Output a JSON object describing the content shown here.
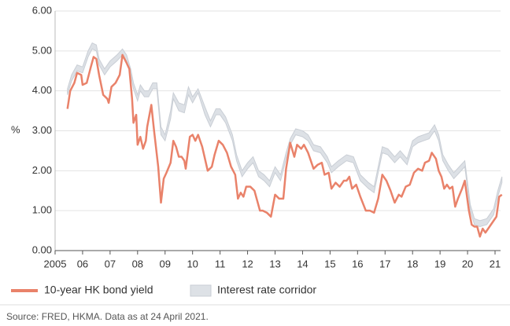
{
  "chart_data": {
    "type": "line",
    "y_label": "%",
    "source": "Source: FRED, HKMA. Data as at 24 April 2021.",
    "xlim": [
      2005,
      2021.2
    ],
    "ylim": [
      0,
      6
    ],
    "grid": true,
    "xticks": [
      2005,
      {
        "value": 2006,
        "label": "06"
      },
      {
        "value": 2007,
        "label": "07"
      },
      {
        "value": 2008,
        "label": "08"
      },
      {
        "value": 2009,
        "label": "09"
      },
      {
        "value": 2010,
        "label": "10"
      },
      {
        "value": 2011,
        "label": "11"
      },
      {
        "value": 2012,
        "label": "12"
      },
      {
        "value": 2013,
        "label": "13"
      },
      {
        "value": 2014,
        "label": "14"
      },
      {
        "value": 2015,
        "label": "15"
      },
      {
        "value": 2016,
        "label": "16"
      },
      {
        "value": 2017,
        "label": "17"
      },
      {
        "value": 2018,
        "label": "18"
      },
      {
        "value": 2019,
        "label": "19"
      },
      {
        "value": 2020,
        "label": "20"
      },
      {
        "value": 2021,
        "label": "21"
      }
    ],
    "yticks": [
      {
        "value": 0,
        "label": "0.00"
      },
      {
        "value": 1,
        "label": "1.00"
      },
      {
        "value": 2,
        "label": "2.00"
      },
      {
        "value": 3,
        "label": "3.00"
      },
      {
        "value": 4,
        "label": "4.00"
      },
      {
        "value": 5,
        "label": "5.00"
      },
      {
        "value": 6,
        "label": "6.00"
      }
    ],
    "series": [
      {
        "name": "10-year HK bond yield",
        "color": "#e9826a",
        "x": [
          2005.45,
          2005.55,
          2005.7,
          2005.8,
          2005.95,
          2006.0,
          2006.15,
          2006.3,
          2006.4,
          2006.5,
          2006.6,
          2006.75,
          2006.9,
          2006.95,
          2007.05,
          2007.2,
          2007.35,
          2007.45,
          2007.6,
          2007.7,
          2007.8,
          2007.85,
          2007.95,
          2008.0,
          2008.1,
          2008.2,
          2008.3,
          2008.35,
          2008.5,
          2008.6,
          2008.75,
          2008.85,
          2008.95,
          2009.05,
          2009.2,
          2009.3,
          2009.4,
          2009.5,
          2009.6,
          2009.7,
          2009.75,
          2009.9,
          2010.0,
          2010.1,
          2010.2,
          2010.35,
          2010.45,
          2010.55,
          2010.7,
          2010.8,
          2010.95,
          2011.1,
          2011.25,
          2011.4,
          2011.55,
          2011.65,
          2011.75,
          2011.85,
          2011.95,
          2012.1,
          2012.25,
          2012.35,
          2012.45,
          2012.55,
          2012.7,
          2012.85,
          2013.0,
          2013.15,
          2013.3,
          2013.4,
          2013.55,
          2013.7,
          2013.8,
          2013.95,
          2014.05,
          2014.2,
          2014.4,
          2014.55,
          2014.7,
          2014.8,
          2014.95,
          2015.05,
          2015.2,
          2015.35,
          2015.5,
          2015.6,
          2015.7,
          2015.8,
          2015.95,
          2016.1,
          2016.3,
          2016.45,
          2016.6,
          2016.75,
          2016.9,
          2017.05,
          2017.2,
          2017.35,
          2017.5,
          2017.6,
          2017.75,
          2017.9,
          2018.05,
          2018.2,
          2018.35,
          2018.45,
          2018.6,
          2018.7,
          2018.85,
          2018.95,
          2019.05,
          2019.15,
          2019.25,
          2019.35,
          2019.45,
          2019.55,
          2019.65,
          2019.8,
          2019.9,
          2019.95,
          2020.05,
          2020.15,
          2020.25,
          2020.35,
          2020.45,
          2020.55,
          2020.65,
          2020.8,
          2020.95,
          2021.05,
          2021.15,
          2021.25
        ],
        "values": [
          3.55,
          4.0,
          4.2,
          4.45,
          4.4,
          4.15,
          4.2,
          4.6,
          4.85,
          4.8,
          4.4,
          3.9,
          3.8,
          3.7,
          4.1,
          4.2,
          4.4,
          4.9,
          4.7,
          4.55,
          3.8,
          3.2,
          3.4,
          2.65,
          2.85,
          2.55,
          2.75,
          3.1,
          3.65,
          3.0,
          2.1,
          1.2,
          1.8,
          1.95,
          2.2,
          2.75,
          2.6,
          2.35,
          2.35,
          2.25,
          2.05,
          2.85,
          2.9,
          2.75,
          2.9,
          2.6,
          2.3,
          2.0,
          2.1,
          2.4,
          2.75,
          2.65,
          2.45,
          2.1,
          1.9,
          1.3,
          1.45,
          1.35,
          1.6,
          1.6,
          1.5,
          1.25,
          1.0,
          1.0,
          0.95,
          0.85,
          1.4,
          1.3,
          1.3,
          2.05,
          2.7,
          2.35,
          2.65,
          2.55,
          2.65,
          2.45,
          2.05,
          2.15,
          2.2,
          1.9,
          1.95,
          1.55,
          1.7,
          1.6,
          1.75,
          1.75,
          1.85,
          1.55,
          1.65,
          1.35,
          1.0,
          1.0,
          0.95,
          1.3,
          1.9,
          1.75,
          1.5,
          1.2,
          1.4,
          1.35,
          1.6,
          1.65,
          1.95,
          2.05,
          2.0,
          2.2,
          2.25,
          2.45,
          2.3,
          2.0,
          1.85,
          1.55,
          1.65,
          1.55,
          1.6,
          1.1,
          1.3,
          1.55,
          1.75,
          1.5,
          1.0,
          0.65,
          0.6,
          0.6,
          0.35,
          0.55,
          0.45,
          0.6,
          0.75,
          0.85,
          1.35,
          1.4
        ]
      },
      {
        "name": "Interest rate corridor",
        "color": "#dde1e6",
        "x": [
          2005.45,
          2005.6,
          2005.8,
          2006.0,
          2006.2,
          2006.35,
          2006.5,
          2006.6,
          2006.8,
          2007.0,
          2007.25,
          2007.45,
          2007.6,
          2007.75,
          2007.85,
          2008.0,
          2008.1,
          2008.25,
          2008.4,
          2008.55,
          2008.7,
          2008.85,
          2009.0,
          2009.2,
          2009.3,
          2009.5,
          2009.7,
          2009.85,
          2010.0,
          2010.2,
          2010.45,
          2010.65,
          2010.85,
          2011.0,
          2011.2,
          2011.45,
          2011.6,
          2011.8,
          2012.0,
          2012.2,
          2012.4,
          2012.6,
          2012.8,
          2013.0,
          2013.2,
          2013.4,
          2013.55,
          2013.75,
          2014.0,
          2014.2,
          2014.4,
          2014.65,
          2014.9,
          2015.05,
          2015.3,
          2015.6,
          2015.85,
          2016.1,
          2016.4,
          2016.6,
          2016.9,
          2017.1,
          2017.35,
          2017.55,
          2017.8,
          2018.0,
          2018.2,
          2018.4,
          2018.6,
          2018.8,
          2018.95,
          2019.1,
          2019.3,
          2019.5,
          2019.7,
          2019.9,
          2020.1,
          2020.25,
          2020.45,
          2020.7,
          2020.95,
          2021.1,
          2021.25
        ],
        "lower": [
          3.9,
          4.25,
          4.5,
          4.45,
          4.85,
          5.05,
          5.0,
          4.65,
          4.4,
          4.6,
          4.75,
          4.9,
          4.75,
          4.4,
          4.05,
          3.75,
          4.0,
          3.85,
          3.85,
          4.05,
          4.05,
          2.9,
          2.75,
          3.3,
          3.8,
          3.5,
          3.45,
          3.9,
          3.7,
          3.95,
          3.4,
          3.1,
          3.4,
          3.4,
          3.2,
          2.75,
          2.25,
          1.85,
          2.05,
          2.2,
          1.85,
          1.75,
          1.6,
          1.95,
          1.75,
          2.3,
          2.65,
          2.9,
          2.85,
          2.75,
          2.5,
          2.45,
          2.2,
          1.95,
          2.1,
          2.25,
          2.2,
          1.75,
          1.55,
          1.45,
          2.45,
          2.4,
          2.2,
          2.35,
          2.15,
          2.6,
          2.7,
          2.75,
          2.8,
          3.0,
          2.75,
          2.25,
          2.0,
          1.8,
          1.95,
          2.1,
          1.0,
          0.65,
          0.6,
          0.65,
          0.9,
          1.35,
          1.7
        ],
        "upper": [
          4.05,
          4.4,
          4.65,
          4.6,
          5.0,
          5.2,
          5.15,
          4.8,
          4.55,
          4.75,
          4.9,
          5.05,
          4.9,
          4.55,
          4.2,
          3.9,
          4.15,
          4.0,
          4.0,
          4.2,
          4.2,
          3.1,
          2.9,
          3.5,
          3.95,
          3.7,
          3.65,
          4.1,
          3.85,
          4.05,
          3.6,
          3.25,
          3.55,
          3.55,
          3.35,
          2.9,
          2.4,
          2.0,
          2.2,
          2.35,
          2.0,
          1.9,
          1.75,
          2.1,
          1.9,
          2.45,
          2.8,
          3.05,
          3.0,
          2.9,
          2.65,
          2.6,
          2.35,
          2.1,
          2.25,
          2.4,
          2.35,
          1.9,
          1.7,
          1.6,
          2.6,
          2.55,
          2.35,
          2.5,
          2.3,
          2.75,
          2.85,
          2.9,
          2.95,
          3.15,
          2.9,
          2.4,
          2.15,
          1.95,
          2.1,
          2.25,
          1.15,
          0.8,
          0.75,
          0.8,
          1.05,
          1.5,
          1.85
        ]
      }
    ]
  }
}
